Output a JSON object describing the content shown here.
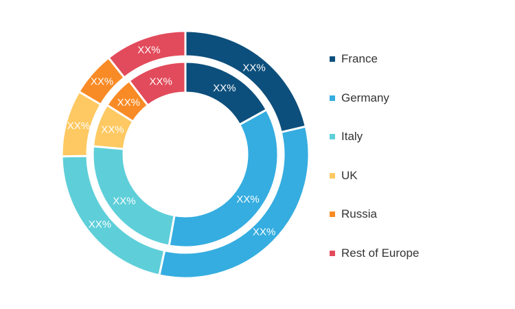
{
  "chart_data": {
    "type": "pie",
    "subtype": "nested-donut",
    "categories": [
      "France",
      "Germany",
      "Italy",
      "UK",
      "Russia",
      "Rest of Europe"
    ],
    "colors": [
      "#0d4f7c",
      "#35ade0",
      "#5ecfd9",
      "#fec962",
      "#f98b26",
      "#e24b5b"
    ],
    "series": [
      {
        "ring": "outer",
        "values": [
          22,
          33,
          22,
          9,
          6,
          11
        ],
        "labels": [
          "XX%",
          "XX%",
          "XX%",
          "XX%",
          "XX%",
          "XX%"
        ]
      },
      {
        "ring": "inner",
        "values": [
          18,
          38,
          25,
          8,
          6,
          11
        ],
        "labels": [
          "XX%",
          "XX%",
          "XX%",
          "XX%",
          "XX%",
          "XX%"
        ]
      }
    ],
    "start_angle": "top, clockwise",
    "legend_position": "right"
  }
}
